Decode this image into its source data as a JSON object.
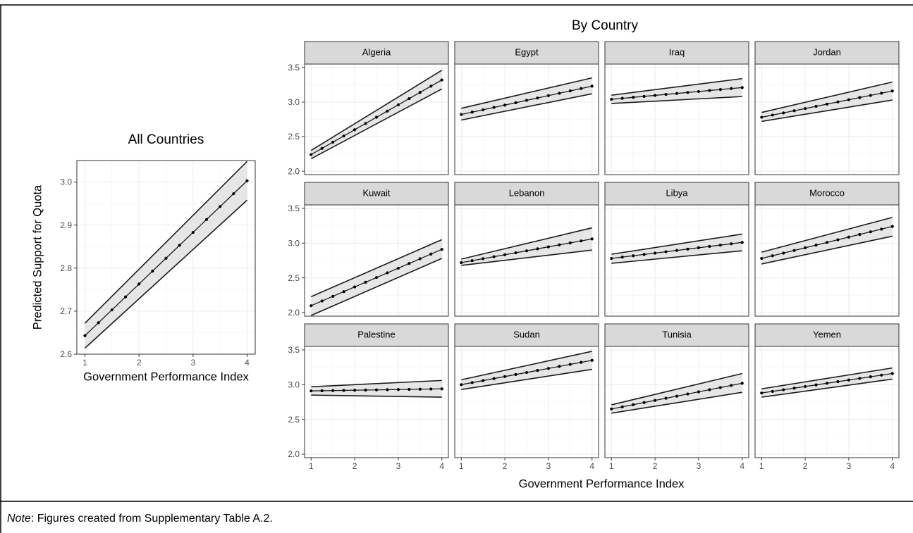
{
  "note": {
    "label": "Note",
    "text": ": Figures created from Supplementary Table A.2."
  },
  "colors": {
    "band": "#e6e6e6",
    "line": "#1a1a1a",
    "grid": "#ebebeb",
    "strip": "#d9d9d9",
    "panel_border": "#333333",
    "axis_text": "#4d4d4d"
  },
  "chart_data": [
    {
      "type": "line",
      "title": "All Countries",
      "xlabel": "Government Performance Index",
      "ylabel": "Predicted Support for Quota",
      "xlim": [
        1,
        4
      ],
      "ylim": [
        2.6,
        3.05
      ],
      "x_ticks": [
        1,
        2,
        3,
        4
      ],
      "y_ticks": [
        2.6,
        2.7,
        2.8,
        2.9,
        3.0
      ],
      "y_tick_labels": [
        "2.6",
        "2.7",
        "2.8",
        "2.9",
        "3.0"
      ],
      "grid": true,
      "series": [
        {
          "x": [
            1,
            4
          ],
          "fit": [
            2.643,
            3.003
          ],
          "lower": [
            2.614,
            2.958
          ],
          "upper": [
            2.672,
            3.048
          ]
        }
      ]
    },
    {
      "type": "line",
      "title": "By Country",
      "xlabel": "Government Performance Index",
      "ylabel": "",
      "xlim": [
        1,
        4
      ],
      "ylim": [
        1.95,
        3.55
      ],
      "x_ticks": [
        1,
        2,
        3,
        4
      ],
      "y_ticks": [
        2.0,
        2.5,
        3.0,
        3.5
      ],
      "y_tick_labels": [
        "2.0",
        "2.5",
        "3.0",
        "3.5"
      ],
      "grid": true,
      "facets": [
        "Algeria",
        "Egypt",
        "Iraq",
        "Jordan",
        "Kuwait",
        "Lebanon",
        "Libya",
        "Morocco",
        "Palestine",
        "Sudan",
        "Tunisia",
        "Yemen"
      ],
      "series": [
        {
          "name": "Algeria",
          "x": [
            1,
            4
          ],
          "fit": [
            2.24,
            3.32
          ],
          "lower": [
            2.18,
            3.19
          ],
          "upper": [
            2.3,
            3.46
          ]
        },
        {
          "name": "Egypt",
          "x": [
            1,
            4
          ],
          "fit": [
            2.82,
            3.23
          ],
          "lower": [
            2.74,
            3.12
          ],
          "upper": [
            2.91,
            3.35
          ]
        },
        {
          "name": "Iraq",
          "x": [
            1,
            4
          ],
          "fit": [
            3.04,
            3.21
          ],
          "lower": [
            2.98,
            3.08
          ],
          "upper": [
            3.1,
            3.34
          ]
        },
        {
          "name": "Jordan",
          "x": [
            1,
            4
          ],
          "fit": [
            2.78,
            3.16
          ],
          "lower": [
            2.72,
            3.03
          ],
          "upper": [
            2.85,
            3.29
          ]
        },
        {
          "name": "Kuwait",
          "x": [
            1,
            4
          ],
          "fit": [
            2.1,
            2.91
          ],
          "lower": [
            1.96,
            2.78
          ],
          "upper": [
            2.23,
            3.05
          ]
        },
        {
          "name": "Lebanon",
          "x": [
            1,
            4
          ],
          "fit": [
            2.72,
            3.06
          ],
          "lower": [
            2.68,
            2.9
          ],
          "upper": [
            2.77,
            3.22
          ]
        },
        {
          "name": "Libya",
          "x": [
            1,
            4
          ],
          "fit": [
            2.78,
            3.01
          ],
          "lower": [
            2.71,
            2.89
          ],
          "upper": [
            2.84,
            3.13
          ]
        },
        {
          "name": "Morocco",
          "x": [
            1,
            4
          ],
          "fit": [
            2.78,
            3.24
          ],
          "lower": [
            2.7,
            3.1
          ],
          "upper": [
            2.87,
            3.37
          ]
        },
        {
          "name": "Palestine",
          "x": [
            1,
            4
          ],
          "fit": [
            2.91,
            2.94
          ],
          "lower": [
            2.85,
            2.82
          ],
          "upper": [
            2.97,
            3.06
          ]
        },
        {
          "name": "Sudan",
          "x": [
            1,
            4
          ],
          "fit": [
            3.0,
            3.35
          ],
          "lower": [
            2.93,
            3.22
          ],
          "upper": [
            3.07,
            3.48
          ]
        },
        {
          "name": "Tunisia",
          "x": [
            1,
            4
          ],
          "fit": [
            2.65,
            3.02
          ],
          "lower": [
            2.59,
            2.89
          ],
          "upper": [
            2.71,
            3.16
          ]
        },
        {
          "name": "Yemen",
          "x": [
            1,
            4
          ],
          "fit": [
            2.88,
            3.16
          ],
          "lower": [
            2.82,
            3.08
          ],
          "upper": [
            2.94,
            3.24
          ]
        }
      ]
    }
  ]
}
